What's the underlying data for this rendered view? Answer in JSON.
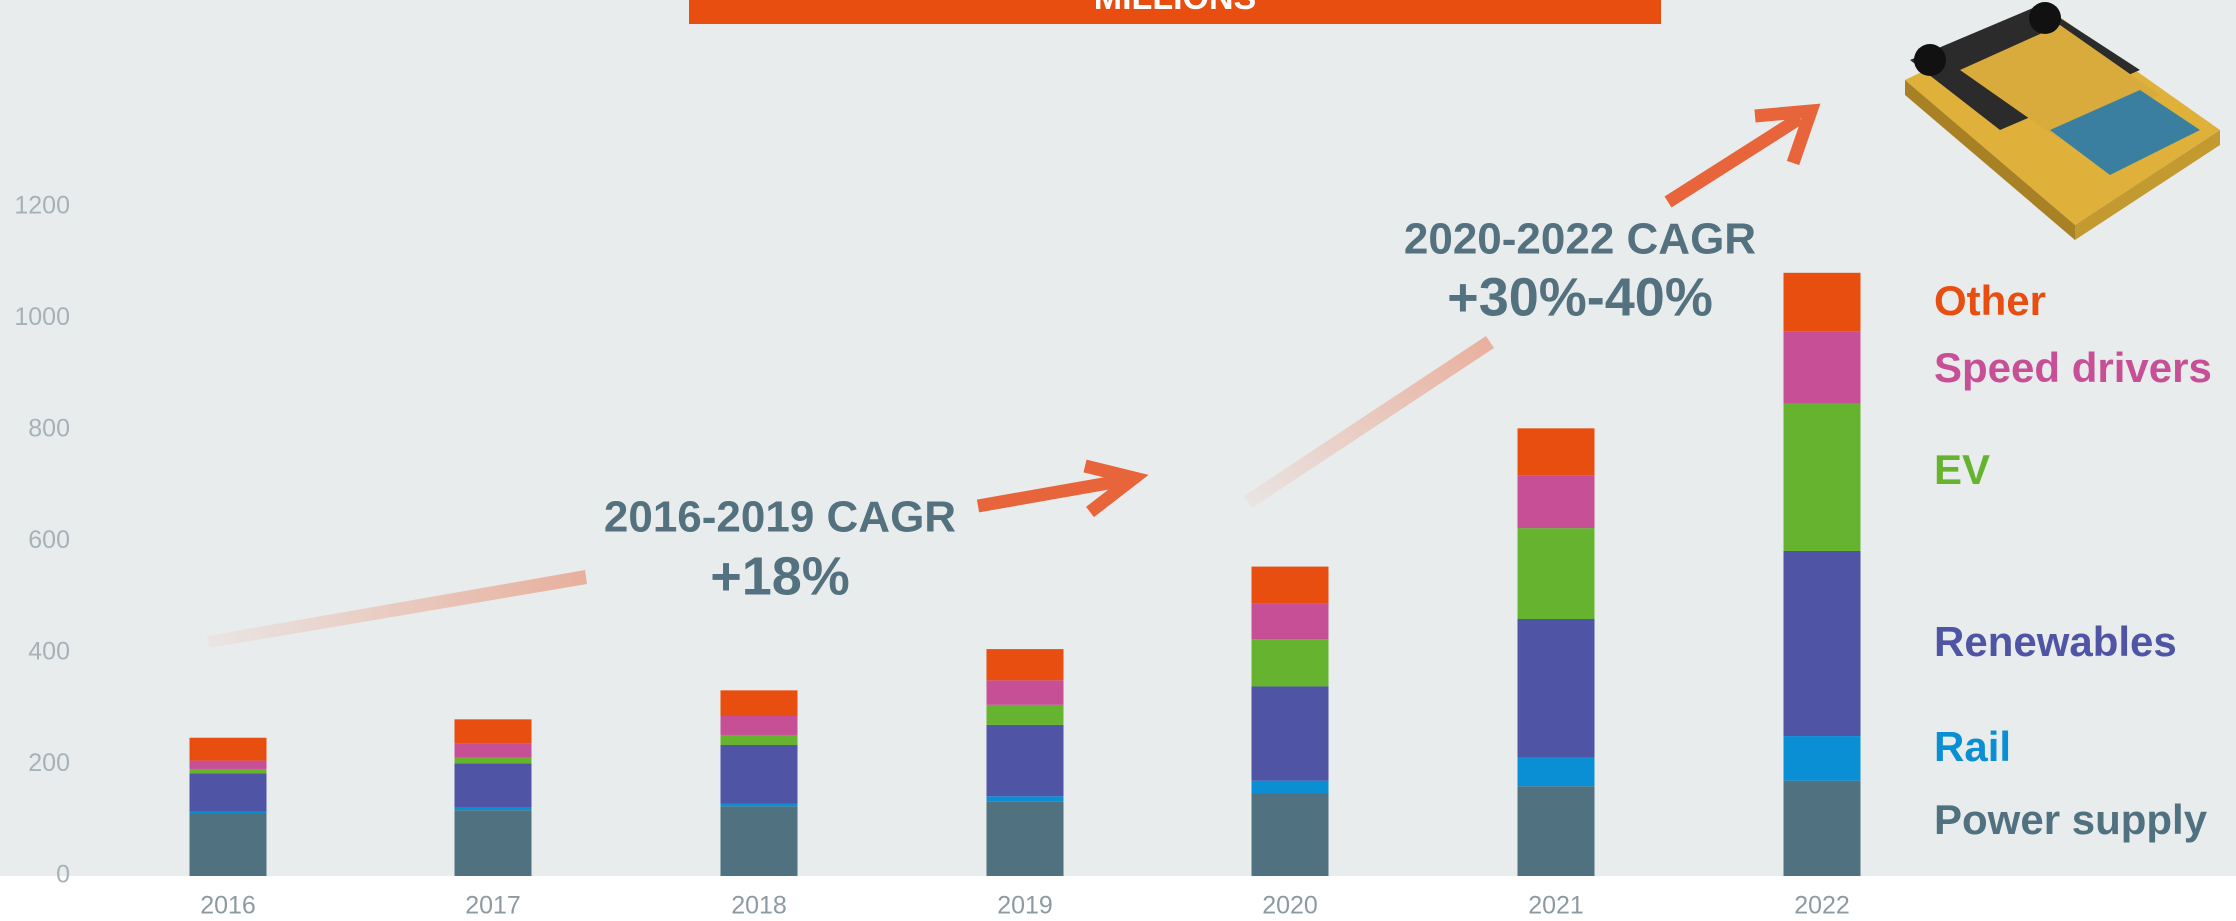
{
  "chart_data": {
    "type": "stacked_bar",
    "title": "MILLIONS",
    "categories": [
      "2016",
      "2017",
      "2018",
      "2019",
      "2020",
      "2021",
      "2022"
    ],
    "series": [
      {
        "name": "Power supply",
        "color": "#50717f",
        "values": [
          113,
          118,
          125,
          133,
          148,
          161,
          171
        ]
      },
      {
        "name": "Rail",
        "color": "#0a8fd4",
        "values": [
          2,
          5,
          5,
          10,
          23,
          51,
          80
        ]
      },
      {
        "name": "Renewables",
        "color": "#4f55a4",
        "values": [
          69,
          79,
          105,
          128,
          169,
          249,
          332
        ]
      },
      {
        "name": "EV",
        "color": "#66b330",
        "values": [
          8,
          10,
          18,
          36,
          85,
          163,
          264
        ]
      },
      {
        "name": "Speed drivers",
        "color": "#c64f96",
        "values": [
          15,
          26,
          34,
          44,
          64,
          95,
          130
        ]
      },
      {
        "name": "Other",
        "color": "#e84e0f",
        "values": [
          41,
          43,
          46,
          56,
          66,
          84,
          105
        ]
      }
    ],
    "ylim": [
      0,
      1200
    ],
    "yticks": [
      0,
      200,
      400,
      600,
      800,
      1000,
      1200
    ],
    "annotations": [
      "2016-2019 CAGR",
      "+18%",
      "2020-2022 CAGR",
      "+30%-40%"
    ]
  }
}
